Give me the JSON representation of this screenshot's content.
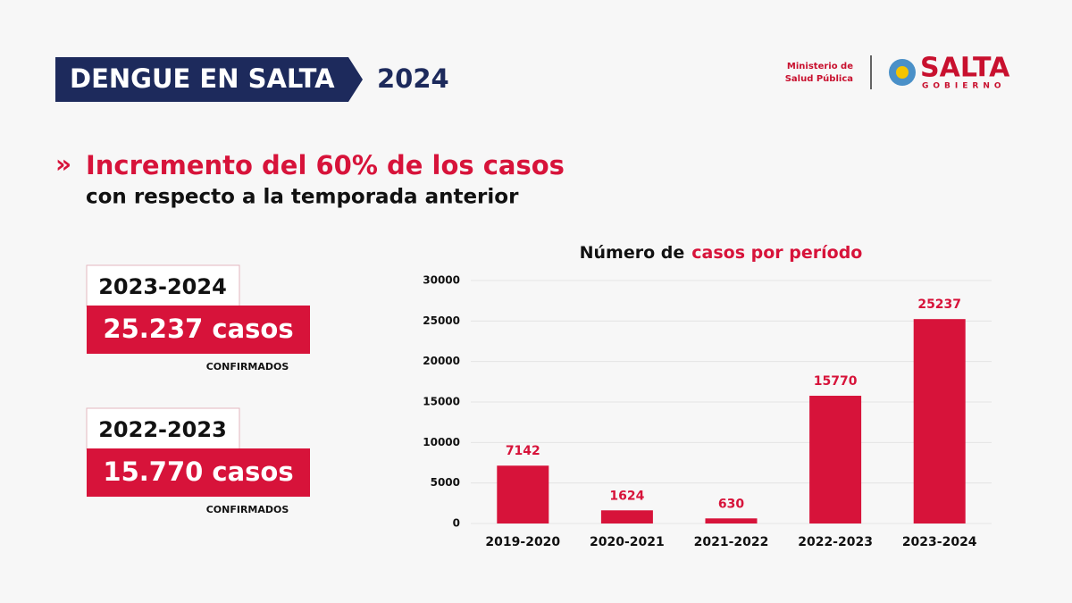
{
  "header": {
    "title": "DENGUE EN SALTA",
    "year": "2024",
    "ministry": [
      "Ministerio de",
      "Salud Pública"
    ],
    "logo": "SALTA",
    "logo_sub": "GOBIERNO"
  },
  "headline": {
    "marker": "»",
    "title": "Incremento del 60% de los casos",
    "subtitle": "con respecto a la temporada anterior"
  },
  "cards": [
    {
      "period": "2023-2024",
      "cases": "25.237 casos",
      "note": "CONFIRMADOS"
    },
    {
      "period": "2022-2023",
      "cases": "15.770 casos",
      "note": "CONFIRMADOS"
    }
  ],
  "chart_data": {
    "type": "bar",
    "title": [
      "Número de",
      "casos por período"
    ],
    "categories": [
      "2019-2020",
      "2020-2021",
      "2021-2022",
      "2022-2023",
      "2023-2024"
    ],
    "values": [
      7142,
      1624,
      630,
      15770,
      25237
    ],
    "color": "#d7133a",
    "ylim": [
      0,
      30000
    ],
    "yticks": [
      0,
      5000,
      10000,
      15000,
      20000,
      25000,
      30000
    ],
    "grid": true
  }
}
